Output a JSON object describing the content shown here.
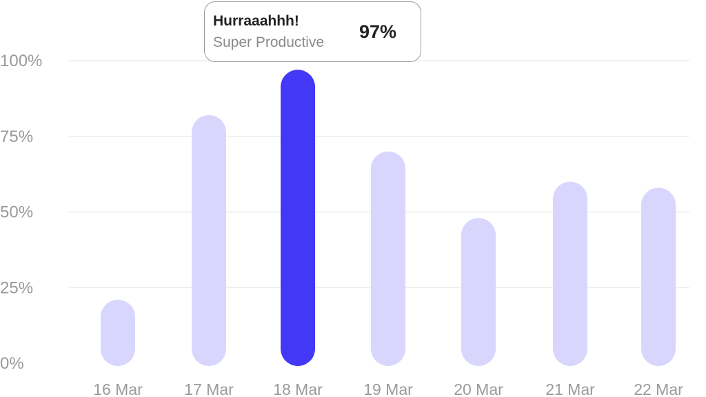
{
  "chart_data": {
    "type": "bar",
    "categories": [
      "16 Mar",
      "17 Mar",
      "18 Mar",
      "19 Mar",
      "20 Mar",
      "21 Mar",
      "22 Mar"
    ],
    "values": [
      21,
      82,
      97,
      70,
      48,
      60,
      58
    ],
    "ylim": [
      0,
      100
    ],
    "yticks": [
      "0%",
      "25%",
      "50%",
      "75%",
      "100%"
    ],
    "grid": true,
    "highlight_index": 2,
    "colors": {
      "bar": "#d9d6fd",
      "highlight": "#4338f5",
      "grid": "#ececec"
    },
    "tooltip": {
      "title": "Hurraaahhh!",
      "subtitle": "Super Productive",
      "value": "97%"
    }
  }
}
